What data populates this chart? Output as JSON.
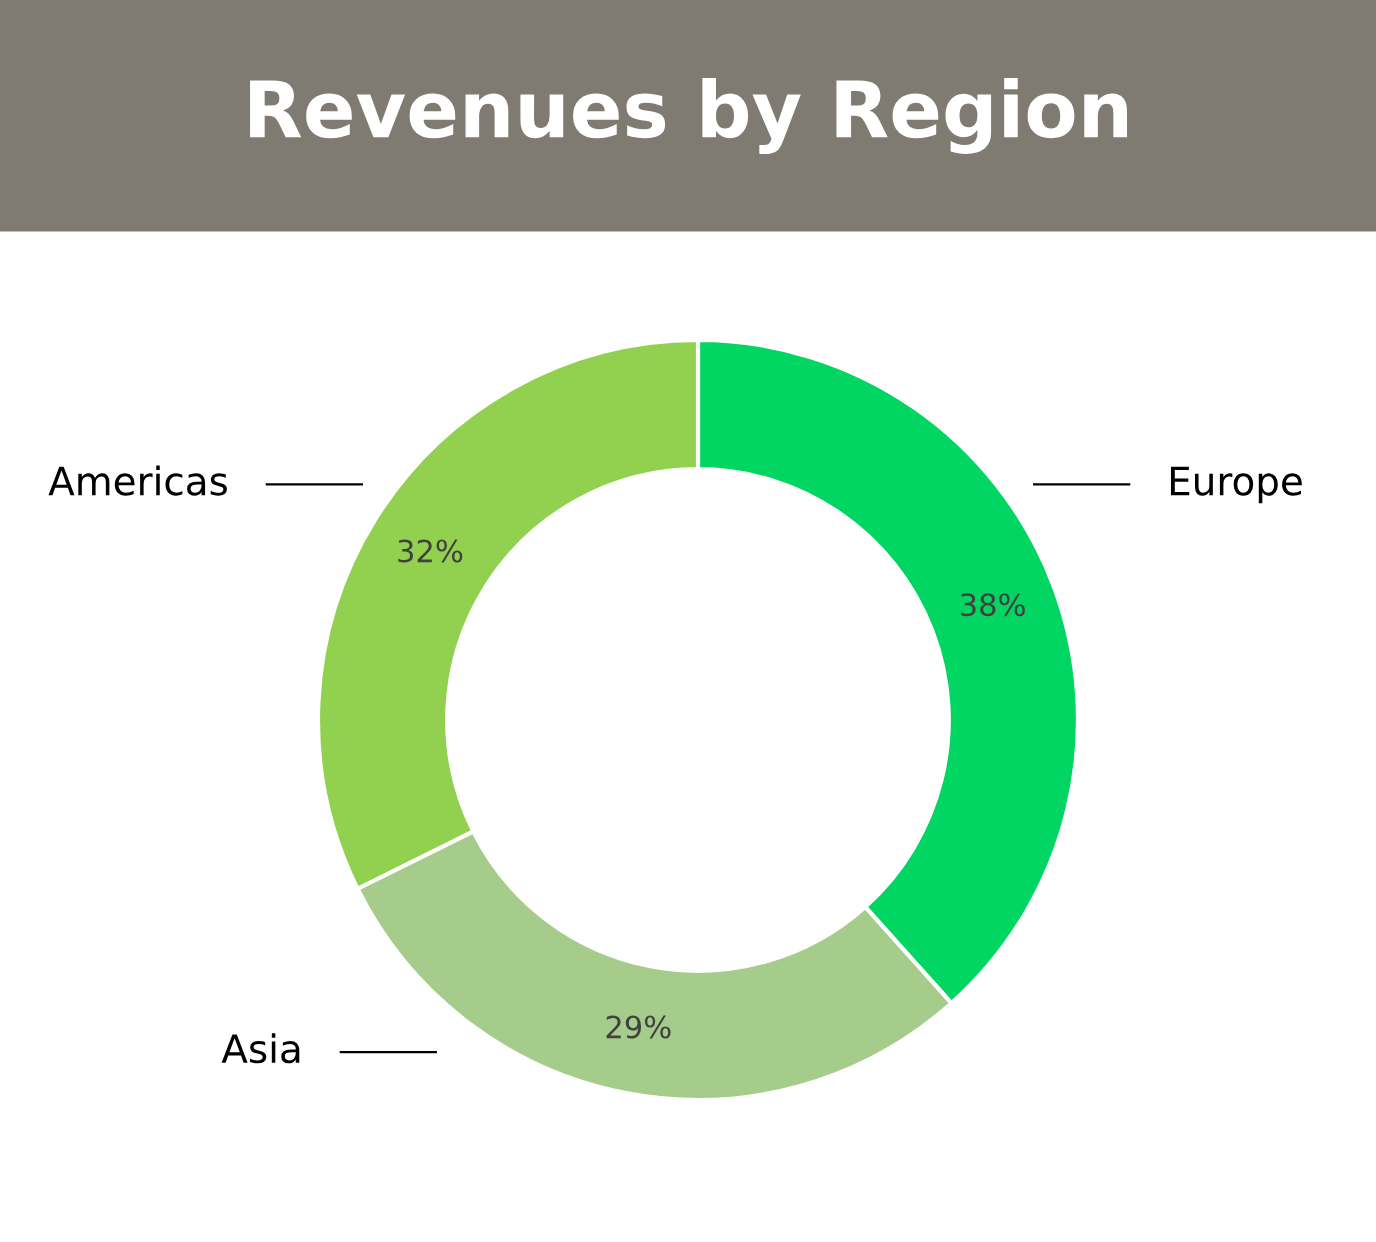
{
  "chart_data": {
    "type": "donut",
    "title": "Revenues by Region",
    "categories": [
      "Europe",
      "Asia",
      "Americas"
    ],
    "values": [
      38,
      29,
      32
    ],
    "colors": [
      "#00d661",
      "#a5cc8a",
      "#92d050"
    ],
    "value_labels": [
      "38%",
      "29%",
      "32%"
    ],
    "legend": false
  }
}
